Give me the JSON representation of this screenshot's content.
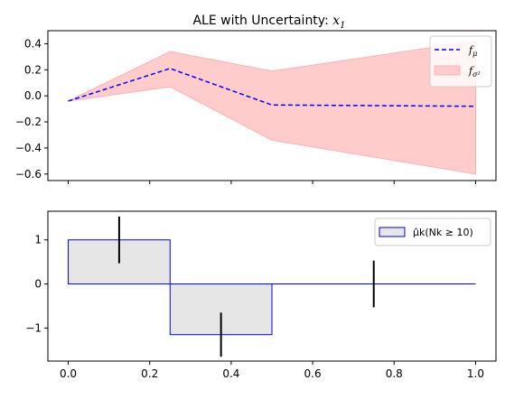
{
  "figure": {
    "title_prefix": "ALE with Uncertainty: ",
    "title_var": "x",
    "title_sub": "1"
  },
  "chart_data": [
    {
      "type": "line",
      "title": "ALE with Uncertainty: x1",
      "x": [
        0.0,
        0.25,
        0.5,
        1.0
      ],
      "series": [
        {
          "name": "f_mu",
          "style": "dashed",
          "color": "#0000ff",
          "values": [
            -0.04,
            0.21,
            -0.07,
            -0.08
          ]
        },
        {
          "name": "f_sigma2",
          "style": "band",
          "color": "#ffcccc",
          "lower": [
            -0.04,
            0.07,
            -0.34,
            -0.6
          ],
          "upper": [
            -0.04,
            0.34,
            0.19,
            0.42
          ]
        }
      ],
      "xlim": [
        -0.05,
        1.05
      ],
      "ylim": [
        -0.65,
        0.5
      ],
      "yticks": [
        "0.4",
        "0.2",
        "0.0",
        "−0.2",
        "−0.4",
        "−0.6"
      ],
      "ytick_values": [
        0.4,
        0.2,
        0.0,
        -0.2,
        -0.4,
        -0.6
      ],
      "grid": false,
      "legend": "top-right",
      "legend_entries": [
        {
          "label_base": "f",
          "label_sub": "μ"
        },
        {
          "label_base": "f",
          "label_sub": "σ²"
        }
      ]
    },
    {
      "type": "bar",
      "bar_edges": [
        0.0,
        0.25,
        0.5,
        1.0
      ],
      "values": [
        1.0,
        -1.15,
        0.0
      ],
      "errorbars": [
        {
          "x": 0.125,
          "low": 0.47,
          "high": 1.53
        },
        {
          "x": 0.375,
          "low": -1.65,
          "high": -0.65
        },
        {
          "x": 0.75,
          "low": -0.53,
          "high": 0.53
        }
      ],
      "bar_color": "#e6e6e6",
      "edge_color": "#0000ff",
      "xlim": [
        -0.05,
        1.05
      ],
      "ylim": [
        -1.75,
        1.65
      ],
      "xticks": [
        "0.0",
        "0.2",
        "0.4",
        "0.6",
        "0.8",
        "1.0"
      ],
      "xtick_values": [
        0.0,
        0.2,
        0.4,
        0.6,
        0.8,
        1.0
      ],
      "yticks": [
        "1",
        "0",
        "−1"
      ],
      "ytick_values": [
        1,
        0,
        -1
      ],
      "grid": false,
      "legend": "top-right",
      "legend_entries": [
        {
          "label": "μ̂k(Nk ≥ 10)"
        }
      ]
    }
  ]
}
